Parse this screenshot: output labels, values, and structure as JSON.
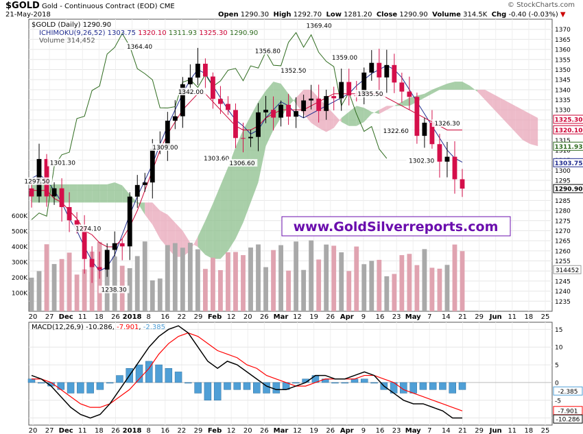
{
  "header": {
    "symbol": "$GOLD",
    "description": "Gold - Continuous Contract (EOD)",
    "exchange": "CME",
    "date": "21-May-2018",
    "brand": "© StockCharts.com",
    "open_label": "Open",
    "open": "1290.30",
    "high_label": "High",
    "high": "1292.70",
    "low_label": "Low",
    "low": "1281.20",
    "close_label": "Close",
    "close": "1290.90",
    "volume_label": "Volume",
    "volume": "314.5K",
    "chg_label": "Chg",
    "chg": "-0.40 (-0.03%)"
  },
  "legend": {
    "price": "$GOLD (Daily) 1290.90",
    "ichimoku_label": "ICHIMOKU(9,26,52)",
    "ichimoku_values": [
      "1303.75",
      "1320.10",
      "1311.93",
      "1325.30",
      "1290.90"
    ],
    "volume": "Volume 314,452",
    "macd_label": "MACD(12,26,9)",
    "macd_values": [
      "-10.286",
      "-7.901",
      "-2.385"
    ]
  },
  "watermark": "www.GoldSilverreports.com",
  "colors": {
    "up_candle": "#000000",
    "down_candle": "#d40f4a",
    "tenkan": "#1f2b8f",
    "kijun": "#cc0033",
    "chikou": "#2e6b1e",
    "cloud_bull": "#8cbf8c",
    "cloud_bear": "#e8a6b8",
    "volume_up": "#a9a9a9",
    "volume_down": "#e0a3b0",
    "macd_line": "#000000",
    "signal_line": "#ff0000",
    "histogram": "#4f9fd6",
    "watermark_text": "#6a0dad"
  },
  "chart_data": [
    {
      "type": "candlestick",
      "title": "$GOLD (Daily) 1290.90",
      "ylim": [
        1230,
        1375
      ],
      "y_ticks": [
        1235,
        1240,
        1245,
        1250,
        1255,
        1260,
        1265,
        1270,
        1275,
        1280,
        1285,
        1290,
        1295,
        1300,
        1305,
        1310,
        1315,
        1320,
        1325,
        1330,
        1335,
        1340,
        1345,
        1350,
        1355,
        1360,
        1365,
        1370
      ],
      "x_tick_labels": [
        {
          "label": "20",
          "major": false
        },
        {
          "label": "27",
          "major": false
        },
        {
          "label": "Dec",
          "major": true
        },
        {
          "label": "11",
          "major": false
        },
        {
          "label": "18",
          "major": false
        },
        {
          "label": "26",
          "major": false
        },
        {
          "label": "2018",
          "major": true
        },
        {
          "label": "8",
          "major": false
        },
        {
          "label": "16",
          "major": false
        },
        {
          "label": "22",
          "major": false
        },
        {
          "label": "29",
          "major": false
        },
        {
          "label": "Feb",
          "major": true
        },
        {
          "label": "12",
          "major": false
        },
        {
          "label": "20",
          "major": false
        },
        {
          "label": "26",
          "major": false
        },
        {
          "label": "Mar",
          "major": true
        },
        {
          "label": "12",
          "major": false
        },
        {
          "label": "19",
          "major": false
        },
        {
          "label": "26",
          "major": false
        },
        {
          "label": "Apr",
          "major": true
        },
        {
          "label": "9",
          "major": false
        },
        {
          "label": "16",
          "major": false
        },
        {
          "label": "23",
          "major": false
        },
        {
          "label": "May",
          "major": true
        },
        {
          "label": "7",
          "major": false
        },
        {
          "label": "14",
          "major": false
        },
        {
          "label": "21",
          "major": false
        },
        {
          "label": "29",
          "major": false
        },
        {
          "label": "Jun",
          "major": true
        },
        {
          "label": "11",
          "major": false
        },
        {
          "label": "18",
          "major": false
        },
        {
          "label": "25",
          "major": false
        }
      ],
      "price_annotations": [
        {
          "label": "1297.50",
          "value": 1297.5
        },
        {
          "label": "1301.30",
          "value": 1301.3
        },
        {
          "label": "1274.10",
          "value": 1274.1
        },
        {
          "label": "1238.30",
          "value": 1238.3
        },
        {
          "label": "1364.40",
          "value": 1364.4
        },
        {
          "label": "1309.00",
          "value": 1309.0
        },
        {
          "label": "1342.00",
          "value": 1342.0
        },
        {
          "label": "1303.60",
          "value": 1303.6
        },
        {
          "label": "1306.60",
          "value": 1306.6
        },
        {
          "label": "1356.80",
          "value": 1356.8
        },
        {
          "label": "1352.50",
          "value": 1352.5
        },
        {
          "label": "1369.40",
          "value": 1369.4
        },
        {
          "label": "1359.00",
          "value": 1359.0
        },
        {
          "label": "1335.50",
          "value": 1335.5
        },
        {
          "label": "1322.60",
          "value": 1322.6
        },
        {
          "label": "1302.30",
          "value": 1302.3
        },
        {
          "label": "1326.30",
          "value": 1326.3
        }
      ],
      "right_value_tags": [
        {
          "label": "1325.30",
          "value": 1325.3,
          "color": "#cc0033"
        },
        {
          "label": "1320.10",
          "value": 1320.1,
          "color": "#cc0033"
        },
        {
          "label": "1311.93",
          "value": 1311.93,
          "color": "#2e6b1e"
        },
        {
          "label": "1303.75",
          "value": 1303.75,
          "color": "#1f2b8f"
        },
        {
          "label": "1290.90",
          "value": 1290.9,
          "color": "#000000"
        }
      ],
      "tenkan_series": [
        1296,
        1298,
        1295,
        1290,
        1284,
        1276,
        1270,
        1262,
        1255,
        1250,
        1252,
        1258,
        1268,
        1278,
        1287,
        1295,
        1303,
        1313,
        1322,
        1330,
        1338,
        1345,
        1350,
        1348,
        1342,
        1336,
        1330,
        1325,
        1322,
        1318,
        1320,
        1326,
        1330,
        1334,
        1332,
        1328,
        1326,
        1328,
        1330,
        1332,
        1334,
        1336,
        1338,
        1342,
        1345,
        1348,
        1350,
        1352,
        1350,
        1346,
        1340,
        1334,
        1328,
        1322,
        1316,
        1310,
        1306,
        1304
      ],
      "kijun_series": [
        1290,
        1290,
        1290,
        1286,
        1284,
        1280,
        1276,
        1270,
        1268,
        1264,
        1262,
        1262,
        1266,
        1272,
        1280,
        1290,
        1300,
        1310,
        1318,
        1324,
        1330,
        1334,
        1338,
        1338,
        1334,
        1330,
        1326,
        1322,
        1320,
        1320,
        1322,
        1326,
        1328,
        1330,
        1330,
        1330,
        1330,
        1332,
        1334,
        1336,
        1338,
        1338,
        1338,
        1338,
        1338,
        1338,
        1338,
        1336,
        1334,
        1332,
        1330,
        1328,
        1326,
        1324,
        1322,
        1320,
        1320,
        1320
      ],
      "volume_scale_labels": [
        "600K",
        "500K",
        "400K",
        "300K",
        "200K",
        "100K"
      ],
      "volume_last_tag": "314452"
    },
    {
      "type": "line",
      "title": "MACD(12,26,9) -10.286, -7.901, -2.385",
      "ylim": [
        -12,
        17
      ],
      "y_ticks": [
        15,
        10,
        5,
        0,
        -5,
        -10
      ],
      "series": [
        {
          "name": "MACD",
          "values": [
            2,
            1,
            -1,
            -4,
            -7,
            -9,
            -10,
            -9,
            -6,
            -2,
            2,
            6,
            10,
            13,
            15,
            16,
            14,
            10,
            6,
            4,
            6,
            5,
            3,
            1,
            -1,
            -2,
            -2,
            -1,
            0,
            2,
            2,
            1,
            1,
            2,
            3,
            2,
            -1,
            -3,
            -5,
            -6,
            -6,
            -7,
            -8,
            -10,
            -10
          ]
        },
        {
          "name": "Signal",
          "values": [
            1,
            1,
            0,
            -2,
            -4,
            -6,
            -7,
            -7,
            -6,
            -4,
            -2,
            1,
            4,
            8,
            11,
            13,
            14,
            13,
            11,
            9,
            8,
            7,
            5,
            4,
            2,
            1,
            0,
            -1,
            -1,
            0,
            1,
            1,
            1,
            1,
            2,
            2,
            1,
            0,
            -2,
            -3,
            -4,
            -5,
            -6,
            -7,
            -8
          ]
        }
      ],
      "histogram": [
        1,
        0,
        -1,
        -2,
        -3,
        -3,
        -3,
        -2,
        0,
        2,
        4,
        5,
        6,
        5,
        4,
        3,
        0,
        -3,
        -5,
        -5,
        -2,
        -2,
        -2,
        -3,
        -3,
        -3,
        -2,
        0,
        1,
        2,
        1,
        0,
        0,
        1,
        1,
        0,
        -2,
        -3,
        -3,
        -3,
        -2,
        -2,
        -2,
        -3,
        -2
      ],
      "right_value_tags": [
        {
          "label": "-2.385",
          "value": -2.385,
          "color": "#4f9fd6"
        },
        {
          "label": "-7.901",
          "value": -7.901,
          "color": "#ff0000"
        },
        {
          "label": "-10.286",
          "value": -10.286,
          "color": "#000000"
        }
      ]
    }
  ]
}
